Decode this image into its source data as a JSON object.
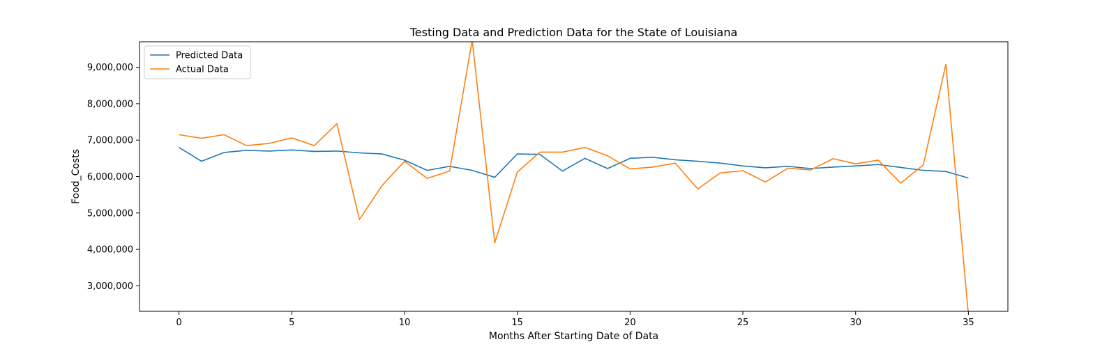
{
  "chart_data": {
    "type": "line",
    "title": "Testing Data and Prediction Data for the State of Louisiana",
    "xlabel": "Months After Starting Date of Data",
    "ylabel": "Food_Costs",
    "xlim": [
      -1.75,
      36.75
    ],
    "ylim": [
      2300000,
      9700000
    ],
    "xticks": [
      0,
      5,
      10,
      15,
      20,
      25,
      30,
      35
    ],
    "xtick_labels": [
      "0",
      "5",
      "10",
      "15",
      "20",
      "25",
      "30",
      "35"
    ],
    "yticks": [
      3000000,
      4000000,
      5000000,
      6000000,
      7000000,
      8000000,
      9000000
    ],
    "ytick_labels": [
      "3,000,000",
      "4,000,000",
      "5,000,000",
      "6,000,000",
      "7,000,000",
      "8,000,000",
      "9,000,000"
    ],
    "grid": false,
    "legend_position": "upper-left",
    "x": [
      0,
      1,
      2,
      3,
      4,
      5,
      6,
      7,
      8,
      9,
      10,
      11,
      12,
      13,
      14,
      15,
      16,
      17,
      18,
      19,
      20,
      21,
      22,
      23,
      24,
      25,
      26,
      27,
      28,
      29,
      30,
      31,
      32,
      33,
      34,
      35
    ],
    "series": [
      {
        "name": "Predicted Data",
        "color": "#1f77b4",
        "values": [
          6800000,
          6420000,
          6660000,
          6720000,
          6700000,
          6730000,
          6690000,
          6700000,
          6650000,
          6620000,
          6450000,
          6170000,
          6280000,
          6170000,
          5980000,
          6620000,
          6610000,
          6150000,
          6500000,
          6220000,
          6500000,
          6530000,
          6460000,
          6420000,
          6370000,
          6290000,
          6240000,
          6280000,
          6220000,
          6260000,
          6290000,
          6330000,
          6250000,
          6170000,
          6140000,
          5960000
        ]
      },
      {
        "name": "Actual Data",
        "color": "#ff7f0e",
        "values": [
          7150000,
          7050000,
          7150000,
          6850000,
          6910000,
          7060000,
          6850000,
          7450000,
          4820000,
          5750000,
          6420000,
          5950000,
          6150000,
          9750000,
          4180000,
          6120000,
          6670000,
          6670000,
          6800000,
          6570000,
          6210000,
          6260000,
          6370000,
          5660000,
          6100000,
          6160000,
          5850000,
          6230000,
          6180000,
          6490000,
          6350000,
          6450000,
          5820000,
          6320000,
          9080000,
          2200000
        ]
      }
    ]
  }
}
